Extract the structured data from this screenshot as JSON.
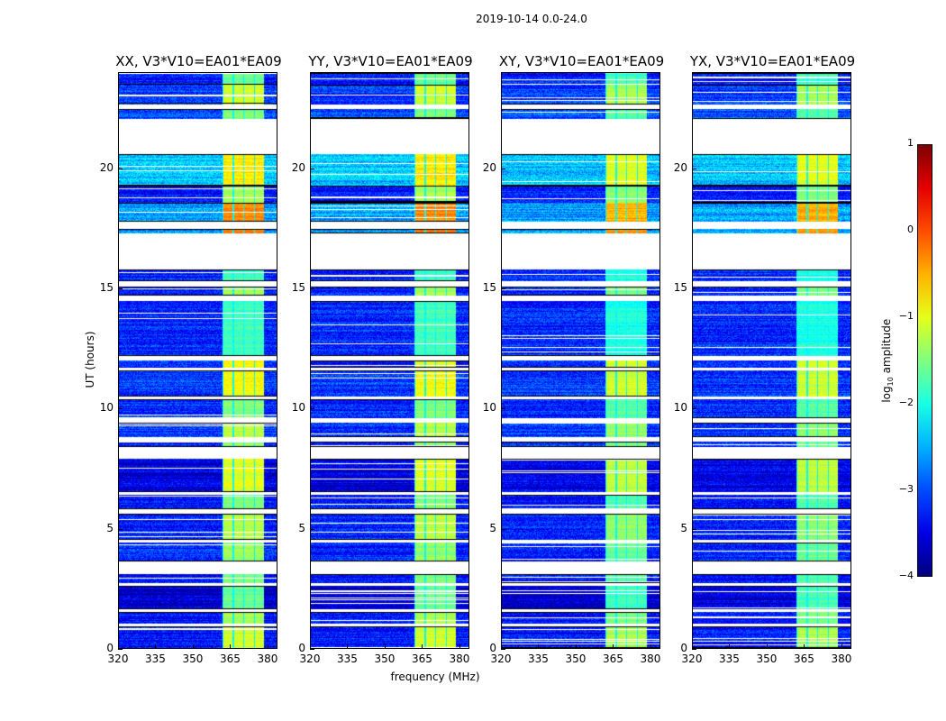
{
  "chart_data": {
    "type": "heatmap",
    "title": "2019-10-14 0.0-24.0",
    "xlabel": "frequency (MHz)",
    "ylabel": "UT (hours)",
    "xlim": [
      320,
      384
    ],
    "ylim": [
      0,
      24
    ],
    "xticks": [
      "320",
      "335",
      "350",
      "365",
      "380"
    ],
    "xtick_values": [
      320,
      335,
      350,
      365,
      380
    ],
    "yticks": [
      "0",
      "5",
      "10",
      "15",
      "20"
    ],
    "ytick_values": [
      0,
      5,
      10,
      15,
      20
    ],
    "panels": [
      {
        "title": "XX, V3*V10=EA01*EA09"
      },
      {
        "title": "YY, V3*V10=EA01*EA09"
      },
      {
        "title": "XY, V3*V10=EA01*EA09"
      },
      {
        "title": "YX, V3*V10=EA01*EA09"
      }
    ],
    "colorbar": {
      "label": "log10 amplitude",
      "label_main": "log",
      "label_sub": "10",
      "label_rest": " amplitude",
      "colormap": "jet",
      "range": [
        -4,
        1
      ],
      "ticks": [
        "1",
        "0",
        "−1",
        "−2",
        "−3",
        "−4"
      ],
      "tick_values": [
        1,
        0,
        -1,
        -2,
        -3,
        -4
      ]
    },
    "bright_band_mhz": [
      362,
      379
    ],
    "segments_hours_bg_band": [
      [
        0,
        0.9,
        -3.3,
        -1.1
      ],
      [
        1.0,
        1.5,
        -3.3,
        -1.3
      ],
      [
        1.6,
        2.6,
        -3.6,
        -1.6
      ],
      [
        2.7,
        3.1,
        -3.3,
        -1.5
      ],
      [
        3.6,
        4.4,
        -3.2,
        -1.4
      ],
      [
        4.5,
        5.6,
        -3.2,
        -1.2
      ],
      [
        5.8,
        6.4,
        -3.3,
        -1.5
      ],
      [
        6.5,
        7.9,
        -3.5,
        -1.0
      ],
      [
        8.4,
        8.6,
        -3.2,
        -1.4
      ],
      [
        8.8,
        9.4,
        -3.1,
        -1.2
      ],
      [
        9.6,
        10.4,
        -3.2,
        -1.5
      ],
      [
        10.5,
        11.6,
        -3.1,
        -0.9
      ],
      [
        11.7,
        12.0,
        -3.2,
        -0.9
      ],
      [
        12.2,
        14.5,
        -3.2,
        -1.8
      ],
      [
        14.7,
        15.1,
        -3.2,
        -1.3
      ],
      [
        15.3,
        15.8,
        -3.2,
        -1.8
      ],
      [
        17.3,
        17.5,
        -2.6,
        -0.2
      ],
      [
        17.8,
        18.6,
        -2.6,
        -0.3
      ],
      [
        18.6,
        19.3,
        -3.3,
        -1.3
      ],
      [
        19.3,
        20.6,
        -2.4,
        -0.8
      ],
      [
        22.1,
        22.5,
        -3.0,
        -1.5
      ],
      [
        22.7,
        23.5,
        -3.1,
        -1.1
      ],
      [
        23.5,
        24,
        -3.3,
        -1.6
      ]
    ]
  }
}
